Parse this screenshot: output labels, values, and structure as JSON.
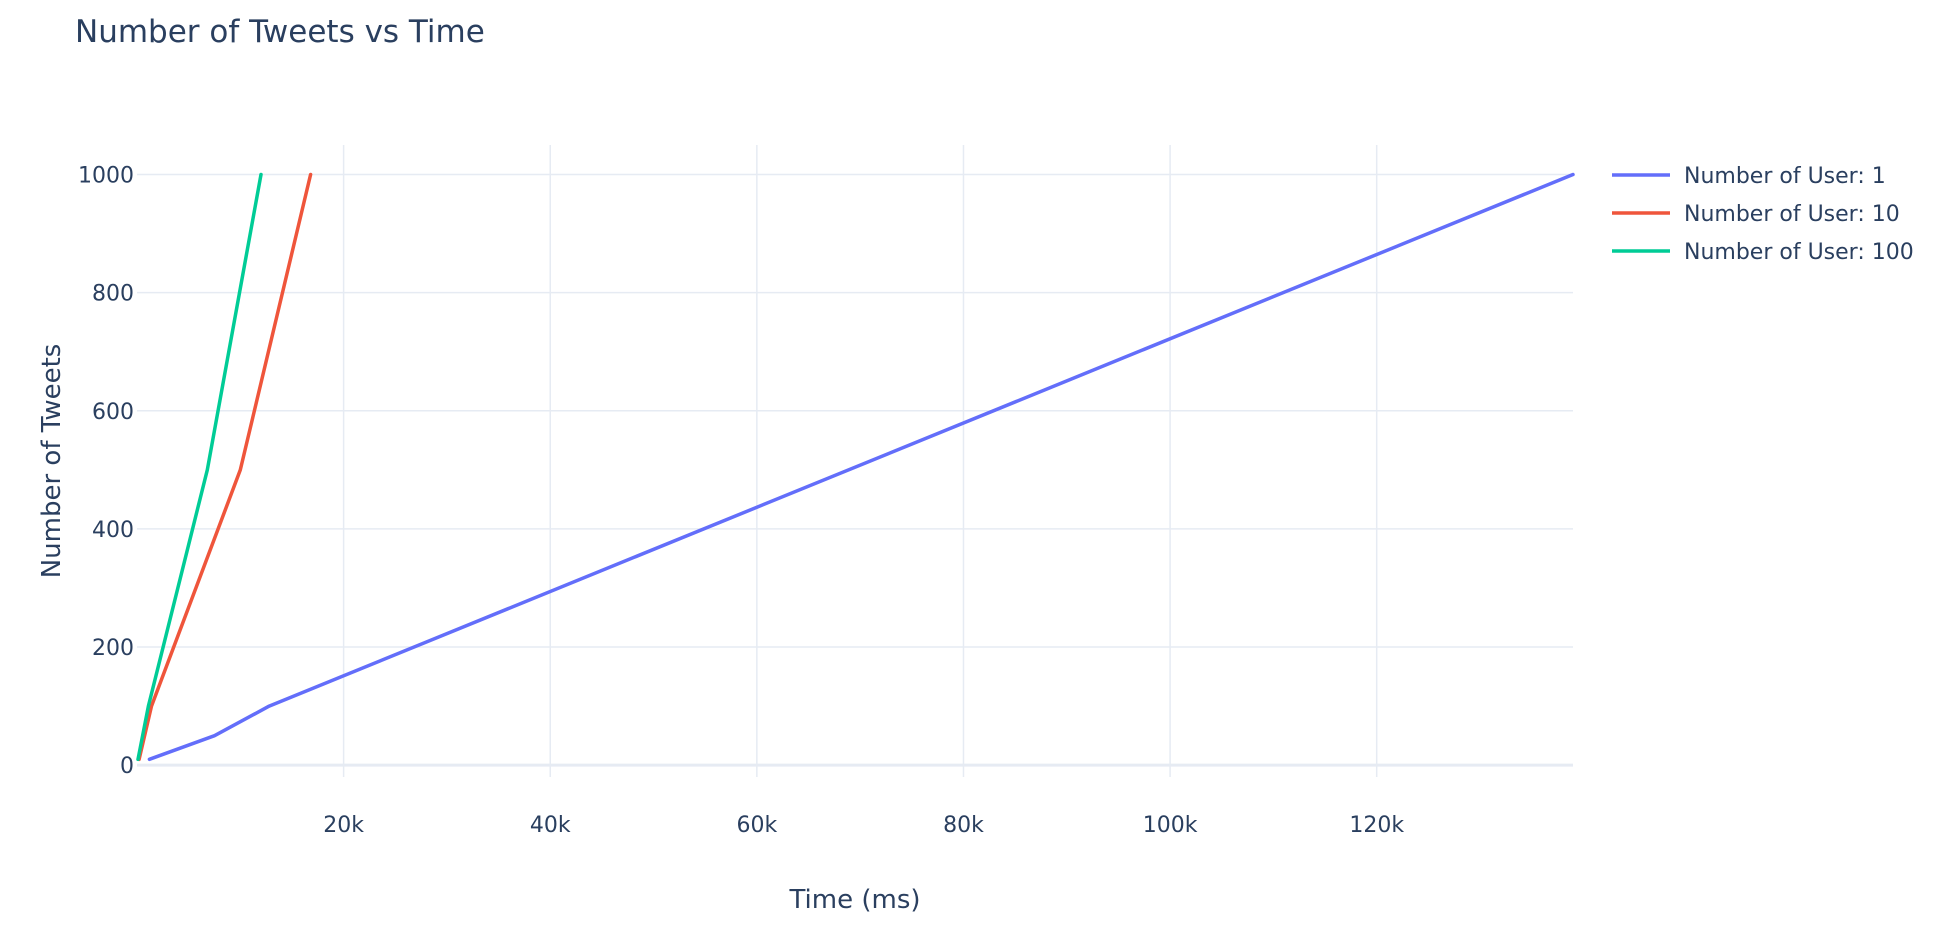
{
  "chart_data": {
    "type": "line",
    "title": "Number of Tweets vs Time",
    "xlabel": "Time (ms)",
    "ylabel": "Number of Tweets",
    "xlim": [
      0,
      139000
    ],
    "ylim": [
      -20,
      1050
    ],
    "x_ticks": [
      {
        "value": 20000,
        "label": "20k"
      },
      {
        "value": 40000,
        "label": "40k"
      },
      {
        "value": 60000,
        "label": "60k"
      },
      {
        "value": 80000,
        "label": "80k"
      },
      {
        "value": 100000,
        "label": "100k"
      },
      {
        "value": 120000,
        "label": "120k"
      }
    ],
    "y_ticks": [
      {
        "value": 0,
        "label": "0"
      },
      {
        "value": 200,
        "label": "200"
      },
      {
        "value": 400,
        "label": "400"
      },
      {
        "value": 600,
        "label": "600"
      },
      {
        "value": 800,
        "label": "800"
      },
      {
        "value": 1000,
        "label": "1000"
      }
    ],
    "grid": true,
    "legend_position": "top-right",
    "series": [
      {
        "name": "Number of User: 1",
        "color": "#636efa",
        "x": [
          1200,
          7500,
          12800,
          139000
        ],
        "y": [
          10,
          50,
          100,
          1000
        ]
      },
      {
        "name": "Number of User: 10",
        "color": "#ef553b",
        "x": [
          200,
          1400,
          10000,
          16800
        ],
        "y": [
          10,
          100,
          500,
          1000
        ]
      },
      {
        "name": "Number of User: 100",
        "color": "#00cc96",
        "x": [
          100,
          1100,
          6800,
          12000
        ],
        "y": [
          10,
          100,
          500,
          1000
        ]
      }
    ]
  }
}
